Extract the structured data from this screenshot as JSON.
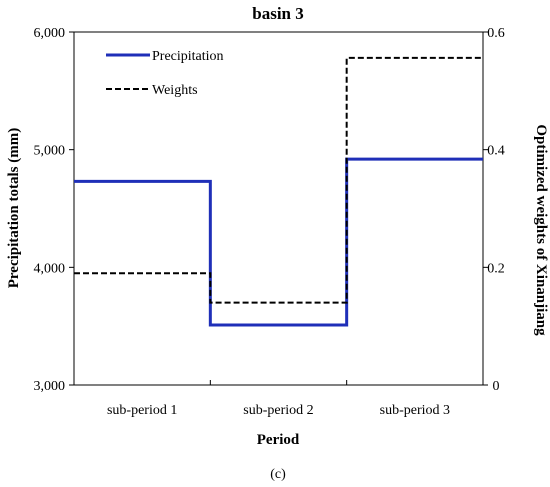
{
  "chart_data": {
    "type": "line",
    "title": "basin 3",
    "xlabel": "Period",
    "ylabel_left": "Precipitation totals (mm)",
    "ylabel_right": "Optimized weights of Xinanjiang",
    "categories": [
      "sub-period 1",
      "sub-period 2",
      "sub-period 3"
    ],
    "ylim_left": [
      3000,
      6000
    ],
    "ylim_right": [
      0,
      0.6
    ],
    "yticks_left": [
      "3,000",
      "4,000",
      "5,000",
      "6,000"
    ],
    "yticks_left_values": [
      3000,
      4000,
      5000,
      6000
    ],
    "yticks_right": [
      "0",
      "0.2",
      "0.4",
      "0.6"
    ],
    "yticks_right_values": [
      0,
      0.2,
      0.4,
      0.6
    ],
    "grid": false,
    "legend_position": "top-left",
    "series": [
      {
        "name": "Precipitation",
        "axis": "left",
        "style": "solid",
        "color": "#1f2fb8",
        "values": [
          4730,
          3510,
          4920
        ]
      },
      {
        "name": "Weights",
        "axis": "right",
        "style": "dashed",
        "color": "#000000",
        "values": [
          0.19,
          0.14,
          0.556
        ]
      }
    ],
    "caption": "(c)"
  }
}
